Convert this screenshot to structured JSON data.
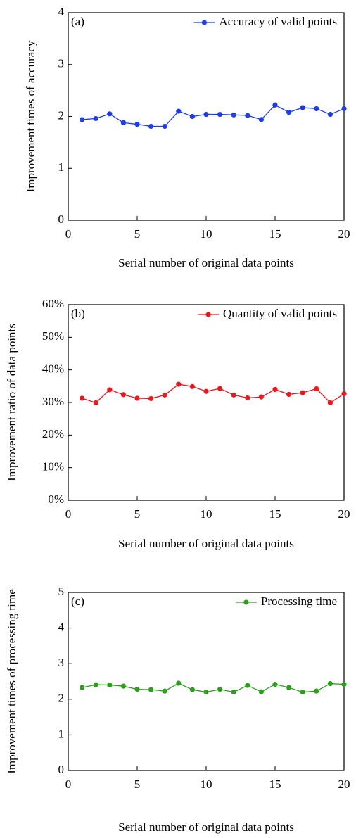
{
  "chart_data": [
    {
      "type": "line",
      "panel_label": "(a)",
      "xlabel": "Serial number of original data points",
      "ylabel": "Improvement times of accuracy",
      "x": [
        1,
        2,
        3,
        4,
        5,
        6,
        7,
        8,
        9,
        10,
        11,
        12,
        13,
        14,
        15,
        16,
        17,
        18,
        19,
        20
      ],
      "series": [
        {
          "name": "Accuracy of valid points",
          "color": "#1f3de8",
          "values": [
            1.94,
            1.96,
            2.05,
            1.88,
            1.85,
            1.81,
            1.81,
            2.1,
            2.0,
            2.04,
            2.04,
            2.03,
            2.02,
            1.94,
            2.22,
            2.08,
            2.17,
            2.15,
            2.04,
            2.15
          ]
        }
      ],
      "xlim": [
        0,
        20
      ],
      "xticks": [
        0,
        5,
        10,
        15,
        20
      ],
      "ylim": [
        0,
        4
      ],
      "yticks": [
        0,
        1,
        2,
        3,
        4
      ],
      "legend": "upper right"
    },
    {
      "type": "line",
      "panel_label": "(b)",
      "xlabel": "Serial number of original data points",
      "ylabel": "Improvement ratio of data points",
      "x": [
        1,
        2,
        3,
        4,
        5,
        6,
        7,
        8,
        9,
        10,
        11,
        12,
        13,
        14,
        15,
        16,
        17,
        18,
        19,
        20
      ],
      "series": [
        {
          "name": "Quantity of valid points",
          "color": "#e8191f",
          "values": [
            31.3,
            29.9,
            33.9,
            32.4,
            31.3,
            31.2,
            32.3,
            35.6,
            34.9,
            33.4,
            34.3,
            32.3,
            31.4,
            31.7,
            34.0,
            32.5,
            33.0,
            34.2,
            29.9,
            32.7
          ]
        }
      ],
      "xlim": [
        0,
        20
      ],
      "xticks": [
        0,
        5,
        10,
        15,
        20
      ],
      "ylim": [
        0,
        60
      ],
      "yticks": [
        {
          "value": 0,
          "label": "0%"
        },
        {
          "value": 10,
          "label": "10%"
        },
        {
          "value": 20,
          "label": "20%"
        },
        {
          "value": 30,
          "label": "30%"
        },
        {
          "value": 40,
          "label": "40%"
        },
        {
          "value": 50,
          "label": "50%"
        },
        {
          "value": 60,
          "label": "60%"
        }
      ],
      "legend": "upper right"
    },
    {
      "type": "line",
      "panel_label": "(c)",
      "xlabel": "Serial number of original data points",
      "ylabel": "Improvement times of processing time",
      "x": [
        1,
        2,
        3,
        4,
        5,
        6,
        7,
        8,
        9,
        10,
        11,
        12,
        13,
        14,
        15,
        16,
        17,
        18,
        19,
        20
      ],
      "series": [
        {
          "name": "Processing time",
          "color": "#2e9e1e",
          "values": [
            2.33,
            2.41,
            2.4,
            2.37,
            2.28,
            2.27,
            2.23,
            2.45,
            2.27,
            2.2,
            2.28,
            2.2,
            2.39,
            2.21,
            2.42,
            2.33,
            2.2,
            2.23,
            2.44,
            2.42
          ]
        }
      ],
      "xlim": [
        0,
        20
      ],
      "xticks": [
        0,
        5,
        10,
        15,
        20
      ],
      "ylim": [
        0,
        5
      ],
      "yticks": [
        0,
        1,
        2,
        3,
        4,
        5
      ],
      "legend": "upper right"
    }
  ]
}
